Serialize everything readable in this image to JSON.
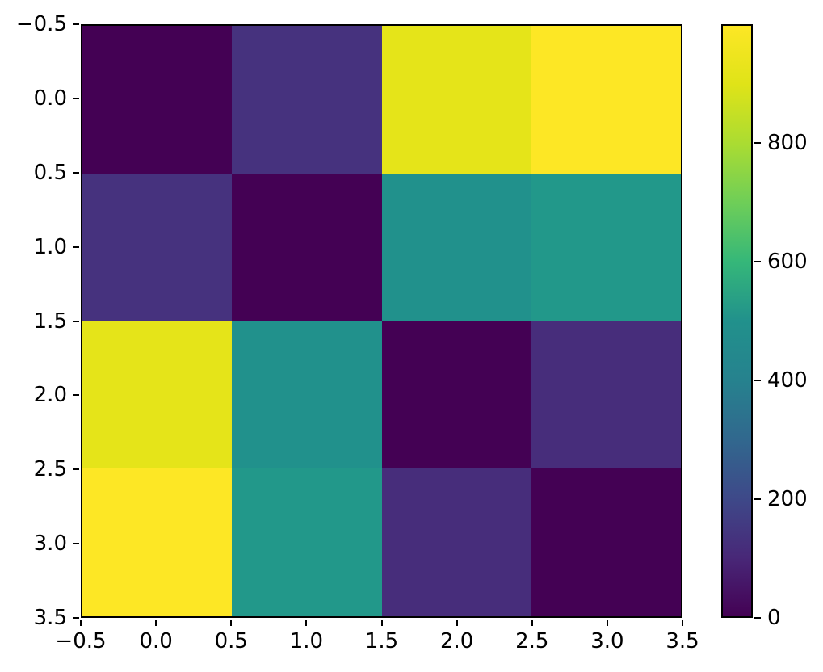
{
  "chart_data": {
    "type": "heatmap",
    "colormap": "viridis",
    "title": "",
    "xlabel": "",
    "ylabel": "",
    "rows": 4,
    "cols": 4,
    "x_range": [
      -0.5,
      3.5
    ],
    "y_range": [
      -0.5,
      3.5
    ],
    "x_tick_labels": [
      "−0.5",
      "0.0",
      "0.5",
      "1.0",
      "1.5",
      "2.0",
      "2.5",
      "3.0",
      "3.5"
    ],
    "y_tick_labels": [
      "−0.5",
      "0.0",
      "0.5",
      "1.0",
      "1.5",
      "2.0",
      "2.5",
      "3.0",
      "3.5"
    ],
    "matrix": [
      [
        0,
        150,
        920,
        1000
      ],
      [
        150,
        0,
        500,
        530
      ],
      [
        920,
        500,
        0,
        140
      ],
      [
        1000,
        530,
        140,
        0
      ]
    ],
    "cell_colors": [
      [
        "#440154",
        "#46327e",
        "#e5e419",
        "#fde725"
      ],
      [
        "#46327e",
        "#440154",
        "#21918c",
        "#22988a"
      ],
      [
        "#e5e419",
        "#21918c",
        "#440154",
        "#472d7b"
      ],
      [
        "#fde725",
        "#22988a",
        "#472d7b",
        "#440154"
      ]
    ],
    "colorbar": {
      "min": 0,
      "max": 1000,
      "tick_values": [
        0,
        200,
        400,
        600,
        800
      ],
      "tick_labels": [
        "0",
        "200",
        "400",
        "600",
        "800"
      ],
      "gradient_stops": [
        {
          "t": 0.0,
          "color": "#440154"
        },
        {
          "t": 0.1,
          "color": "#482878"
        },
        {
          "t": 0.2,
          "color": "#3e4989"
        },
        {
          "t": 0.3,
          "color": "#31688e"
        },
        {
          "t": 0.4,
          "color": "#26828e"
        },
        {
          "t": 0.5,
          "color": "#21918c"
        },
        {
          "t": 0.6,
          "color": "#35b779"
        },
        {
          "t": 0.7,
          "color": "#6ece58"
        },
        {
          "t": 0.8,
          "color": "#aadc32"
        },
        {
          "t": 0.9,
          "color": "#dfe318"
        },
        {
          "t": 1.0,
          "color": "#fde725"
        }
      ]
    }
  },
  "colors": {
    "background": "#ffffff",
    "axis": "#000000",
    "text": "#000000"
  }
}
